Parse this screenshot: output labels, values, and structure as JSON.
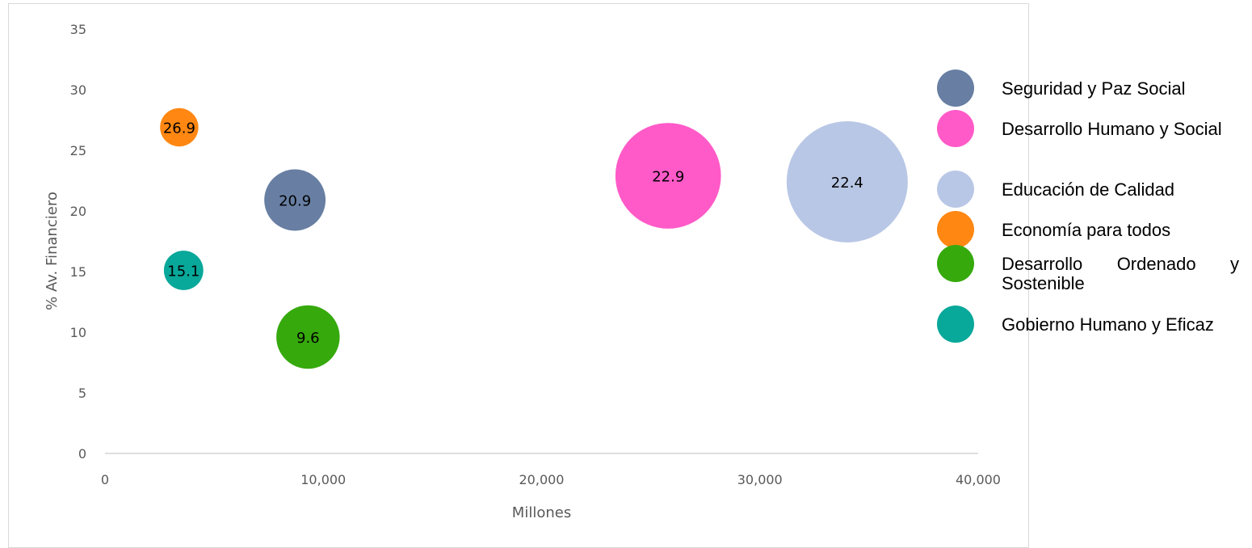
{
  "chart_data": {
    "type": "bubble",
    "xlabel": "Millones",
    "ylabel": "% Av. Financiero",
    "xlim": [
      0,
      40000
    ],
    "ylim": [
      0,
      35
    ],
    "x_ticks": [
      0,
      10000,
      20000,
      30000,
      40000
    ],
    "x_tick_labels": [
      "0",
      "10,000",
      "20,000",
      "30,000",
      "40,000"
    ],
    "y_ticks": [
      0,
      5,
      10,
      15,
      20,
      25,
      30,
      35
    ],
    "y_tick_labels": [
      "0",
      "5",
      "10",
      "15",
      "20",
      "25",
      "30",
      "35"
    ],
    "grid": false,
    "legend_position": "right",
    "series": [
      {
        "name": "Seguridad y Paz Social",
        "x": 8700,
        "y": 20.9,
        "size": 8700,
        "label": "20.9",
        "color": "#687fa3"
      },
      {
        "name": "Desarrollo Humano y Social",
        "x": 25800,
        "y": 22.9,
        "size": 25800,
        "label": "22.9",
        "color": "#ff5ac8"
      },
      {
        "name": "Educación de Calidad",
        "x": 34000,
        "y": 22.4,
        "size": 34000,
        "label": "22.4",
        "color": "#b9c7e6"
      },
      {
        "name": "Economía para todos",
        "x": 3400,
        "y": 26.9,
        "size": 3400,
        "label": "26.9",
        "color": "#ff8712"
      },
      {
        "name": "Desarrollo Ordenado y Sostenible",
        "x": 9300,
        "y": 9.6,
        "size": 9300,
        "label": "9.6",
        "color": "#36a90d"
      },
      {
        "name": "Gobierno Humano y Eficaz",
        "x": 3600,
        "y": 15.1,
        "size": 3600,
        "label": "15.1",
        "color": "#08a89a"
      }
    ]
  }
}
